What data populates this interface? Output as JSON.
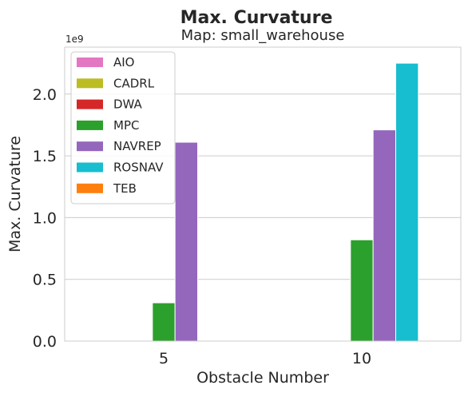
{
  "chart_data": {
    "type": "bar",
    "title": "Max. Curvature",
    "subtitle": "Map: small_warehouse",
    "xlabel": "Obstacle Number",
    "ylabel": "Max. Curvature",
    "y_offset_label": "1e9",
    "categories": [
      "5",
      "10"
    ],
    "ylim": [
      0,
      2.38
    ],
    "yticks": [
      "0.0",
      "0.5",
      "1.0",
      "1.5",
      "2.0"
    ],
    "ytick_values": [
      0,
      0.5,
      1.0,
      1.5,
      2.0
    ],
    "grid": true,
    "legend_position": "top-left",
    "series": [
      {
        "name": "AIO",
        "color": "#e377c2",
        "values": [
          0,
          0
        ]
      },
      {
        "name": "CADRL",
        "color": "#bcbd22",
        "values": [
          0,
          0
        ]
      },
      {
        "name": "DWA",
        "color": "#d62728",
        "values": [
          0,
          0
        ]
      },
      {
        "name": "MPC",
        "color": "#2ca02c",
        "values": [
          0.31,
          0.82
        ]
      },
      {
        "name": "NAVREP",
        "color": "#9467bd",
        "values": [
          1.61,
          1.71
        ]
      },
      {
        "name": "ROSNAV",
        "color": "#17becf",
        "values": [
          0,
          2.25
        ]
      },
      {
        "name": "TEB",
        "color": "#ff7f0e",
        "values": [
          0,
          0
        ]
      }
    ]
  }
}
